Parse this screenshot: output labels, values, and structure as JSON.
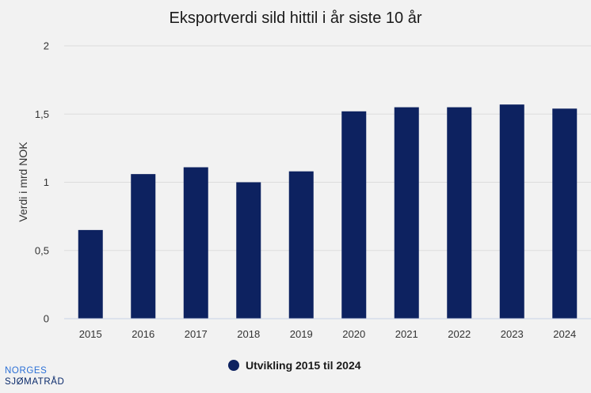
{
  "colors": {
    "bar": "#0d2260",
    "grid": "#dcdcdc",
    "background": "#f2f2f2"
  },
  "logo": {
    "line1": "NORGES",
    "line2": "SJØMATRÅD"
  },
  "chart_data": {
    "type": "bar",
    "title": "Eksportverdi sild hittil i år siste 10 år",
    "xlabel": "",
    "ylabel": "Verdi i mrd NOK",
    "categories": [
      "2015",
      "2016",
      "2017",
      "2018",
      "2019",
      "2020",
      "2021",
      "2022",
      "2023",
      "2024"
    ],
    "series": [
      {
        "name": "Utvikling 2015 til 2024",
        "values": [
          0.65,
          1.06,
          1.11,
          1.0,
          1.08,
          1.52,
          1.55,
          1.55,
          1.57,
          1.54
        ]
      }
    ],
    "ylim": [
      0,
      2
    ],
    "yticks": [
      {
        "value": 0,
        "label": "0"
      },
      {
        "value": 0.5,
        "label": "0,5"
      },
      {
        "value": 1,
        "label": "1"
      },
      {
        "value": 1.5,
        "label": "1,5"
      },
      {
        "value": 2,
        "label": "2"
      }
    ],
    "grid": true,
    "legend_position": "bottom"
  }
}
